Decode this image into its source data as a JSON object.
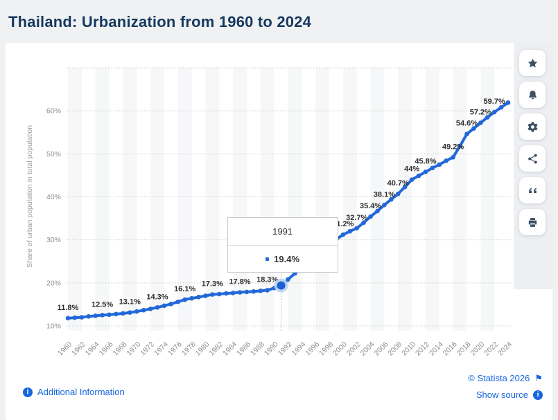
{
  "page": {
    "title": "Thailand: Urbanization from 1960 to 2024"
  },
  "sidebar": {
    "buttons": [
      {
        "name": "favorite",
        "icon": "star-icon"
      },
      {
        "name": "alerts",
        "icon": "bell-icon"
      },
      {
        "name": "settings",
        "icon": "gear-icon"
      },
      {
        "name": "share",
        "icon": "share-icon"
      },
      {
        "name": "cite",
        "icon": "quote-icon"
      },
      {
        "name": "print",
        "icon": "printer-icon"
      }
    ]
  },
  "footer": {
    "additional_information": "Additional Information",
    "copyright": "© Statista 2026",
    "flag_glyph": "⚑",
    "show_source": "Show source"
  },
  "colors": {
    "line": "#2368d9",
    "hover_dot": "#1d5fd0",
    "hover_halo": "#b9cff2",
    "link_blue": "#1765e0",
    "title_navy": "#16395e"
  },
  "chart_data": {
    "type": "line",
    "title": "Thailand: Urbanization from 1960 to 2024",
    "xlabel": "",
    "ylabel": "Share of urban population in total population",
    "x_start": 1960,
    "x_end": 2024,
    "x_tick_step": 2,
    "ylim": [
      10,
      70
    ],
    "y_tick_step": 10,
    "y_tick_suffix": "%",
    "y_ticks_labeled": [
      10,
      20,
      30,
      40,
      50,
      60
    ],
    "grid": "horizontal-dotted",
    "background_stripes": "alternating-2yr",
    "legend": "none",
    "series": [
      {
        "name": "Share of urban population in total population",
        "color": "#2368d9",
        "x_years_annual_from": 1960,
        "values": [
          11.8,
          11.9,
          12.0,
          12.2,
          12.35,
          12.5,
          12.6,
          12.75,
          12.9,
          13.1,
          13.35,
          13.65,
          13.95,
          14.3,
          14.7,
          15.1,
          15.6,
          16.1,
          16.4,
          16.7,
          17.0,
          17.3,
          17.4,
          17.55,
          17.65,
          17.8,
          17.9,
          18.0,
          18.15,
          18.3,
          18.8,
          19.4,
          20.8,
          22.2,
          23.6,
          25.0,
          26.4,
          27.7,
          28.9,
          30.1,
          31.2,
          32.0,
          32.7,
          34.0,
          35.4,
          36.7,
          38.1,
          39.4,
          40.7,
          42.3,
          44.0,
          44.9,
          45.8,
          46.7,
          47.5,
          48.4,
          49.2,
          51.8,
          54.6,
          55.9,
          57.2,
          58.5,
          59.7,
          60.8,
          61.9
        ]
      }
    ],
    "labeled_points": [
      {
        "year": 1960,
        "label": "11.8%"
      },
      {
        "year": 1965,
        "label": "12.5%"
      },
      {
        "year": 1969,
        "label": "13.1%"
      },
      {
        "year": 1973,
        "label": "14.3%"
      },
      {
        "year": 1977,
        "label": "16.1%"
      },
      {
        "year": 1981,
        "label": "17.3%"
      },
      {
        "year": 1985,
        "label": "17.8%"
      },
      {
        "year": 1989,
        "label": "18.3%"
      },
      {
        "year": 2000,
        "label": "31.2%"
      },
      {
        "year": 2002,
        "label": "32.7%"
      },
      {
        "year": 2004,
        "label": "35.4%"
      },
      {
        "year": 2006,
        "label": "38.1%"
      },
      {
        "year": 2008,
        "label": "40.7%"
      },
      {
        "year": 2010,
        "label": "44%"
      },
      {
        "year": 2012,
        "label": "45.8%"
      },
      {
        "year": 2016,
        "label": "49.2%"
      },
      {
        "year": 2018,
        "label": "54.6%"
      },
      {
        "year": 2020,
        "label": "57.2%"
      },
      {
        "year": 2022,
        "label": "59.7%"
      }
    ],
    "highlight": {
      "year": 1991,
      "value": 19.4,
      "tooltip_title": "1991",
      "tooltip_value": "19.4%"
    }
  }
}
